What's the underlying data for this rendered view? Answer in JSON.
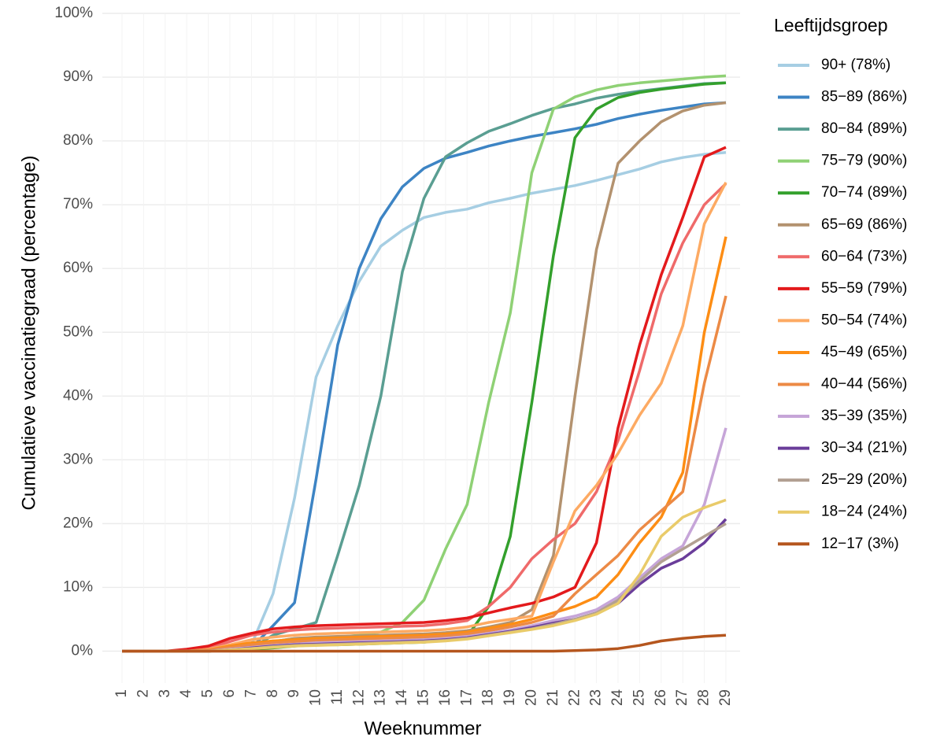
{
  "chart_data": {
    "type": "line",
    "x_label": "Weeknummer",
    "y_label": "Cumulatieve vaccinatiegraad (percentage)",
    "legend_title": "Leeftijdsgroep",
    "legend": "right",
    "grid": true,
    "categories": [
      "1",
      "2",
      "3",
      "4",
      "5",
      "6",
      "7",
      "8",
      "9",
      "10",
      "11",
      "12",
      "13",
      "14",
      "15",
      "16",
      "17",
      "18",
      "19",
      "20",
      "21",
      "22",
      "23",
      "24",
      "25",
      "26",
      "27",
      "28",
      "29"
    ],
    "ylim": [
      -5,
      100
    ],
    "yticks": [
      {
        "value": 0,
        "label": "0%"
      },
      {
        "value": 10,
        "label": "10%"
      },
      {
        "value": 20,
        "label": "20%"
      },
      {
        "value": 30,
        "label": "30%"
      },
      {
        "value": 40,
        "label": "40%"
      },
      {
        "value": 50,
        "label": "50%"
      },
      {
        "value": 60,
        "label": "60%"
      },
      {
        "value": 70,
        "label": "70%"
      },
      {
        "value": 80,
        "label": "80%"
      },
      {
        "value": 90,
        "label": "90%"
      },
      {
        "value": 100,
        "label": "100%"
      }
    ],
    "series": [
      {
        "name": "90+ (78%)",
        "color": "#a6cee3",
        "values": [
          0,
          0,
          0,
          0,
          0,
          0.5,
          1,
          9,
          24,
          43,
          51,
          58,
          63.5,
          66,
          68,
          68.8,
          69.3,
          70.3,
          71,
          71.8,
          72.4,
          73,
          73.8,
          74.7,
          75.6,
          76.7,
          77.4,
          77.9,
          78.2
        ]
      },
      {
        "name": "85−89 (86%)",
        "color": "#3d84c4",
        "values": [
          0,
          0,
          0,
          0,
          0,
          0.3,
          0.5,
          4,
          7.6,
          27,
          48,
          60,
          67.8,
          72.8,
          75.7,
          77.3,
          78.2,
          79.2,
          80,
          80.7,
          81.3,
          81.9,
          82.6,
          83.5,
          84.2,
          84.8,
          85.3,
          85.8,
          86
        ]
      },
      {
        "name": "80−84 (89%)",
        "color": "#5a9e92",
        "values": [
          0,
          0,
          0,
          0,
          0,
          0.3,
          0.5,
          2.5,
          3.5,
          4.5,
          15,
          26,
          40,
          59.5,
          71,
          77.5,
          79.7,
          81.5,
          82.7,
          84,
          85.1,
          85.8,
          86.7,
          87.3,
          87.8,
          88.2,
          88.6,
          89,
          89.1
        ]
      },
      {
        "name": "75−79 (90%)",
        "color": "#8fd175",
        "values": [
          0,
          0,
          0,
          0,
          0,
          0.3,
          0.5,
          1.5,
          2,
          2,
          2.2,
          2.5,
          3,
          4.5,
          8,
          16,
          23,
          39,
          53,
          75,
          85,
          86.9,
          88,
          88.7,
          89.1,
          89.4,
          89.7,
          90,
          90.2
        ]
      },
      {
        "name": "70−74 (89%)",
        "color": "#33a02c",
        "values": [
          0,
          0,
          0,
          0,
          0,
          0.2,
          0.3,
          0.5,
          0.8,
          1,
          1,
          1.1,
          1.2,
          1.3,
          1.4,
          1.8,
          2.3,
          7,
          18,
          39,
          62,
          80.5,
          85,
          86.8,
          87.6,
          88.1,
          88.5,
          88.9,
          89.1
        ]
      },
      {
        "name": "65−69 (86%)",
        "color": "#b3926f",
        "values": [
          0,
          0,
          0,
          0,
          0,
          0.3,
          0.5,
          1.5,
          2,
          2.2,
          2.3,
          2.4,
          2.5,
          2.6,
          2.7,
          2.9,
          3.2,
          3.8,
          4.5,
          6.5,
          15,
          40,
          63,
          76.5,
          80,
          83,
          84.7,
          85.6,
          86
        ]
      },
      {
        "name": "60−64 (73%)",
        "color": "#ef6a6a",
        "values": [
          0,
          0,
          0,
          0,
          0.5,
          1.5,
          2.5,
          3,
          3.3,
          3.5,
          3.6,
          3.7,
          3.8,
          3.9,
          4,
          4.3,
          4.8,
          7,
          10,
          14.5,
          17.5,
          20,
          25,
          33,
          44,
          56,
          64,
          70,
          73.3
        ]
      },
      {
        "name": "55−59 (79%)",
        "color": "#e31a1c",
        "values": [
          0,
          0,
          0,
          0.3,
          0.8,
          2,
          2.8,
          3.5,
          3.8,
          4,
          4.1,
          4.2,
          4.3,
          4.4,
          4.5,
          4.8,
          5.2,
          6,
          6.8,
          7.5,
          8.5,
          10,
          17,
          35,
          48,
          59,
          68,
          77.5,
          79
        ]
      },
      {
        "name": "50−54 (74%)",
        "color": "#fdaa63",
        "values": [
          0,
          0,
          0,
          0,
          0.3,
          1,
          1.8,
          2.2,
          2.5,
          2.7,
          2.8,
          2.9,
          3,
          3.1,
          3.2,
          3.4,
          3.8,
          4.5,
          5,
          5.5,
          14,
          22,
          26,
          31,
          37,
          42,
          51,
          67,
          73.5
        ]
      },
      {
        "name": "45−49 (65%)",
        "color": "#fd8d14",
        "values": [
          0,
          0,
          0,
          0,
          0.2,
          0.8,
          1.3,
          1.6,
          1.8,
          2,
          2.1,
          2.2,
          2.3,
          2.4,
          2.5,
          2.7,
          3,
          3.6,
          4.2,
          5,
          6,
          7,
          8.5,
          12,
          17,
          21,
          28,
          50,
          65
        ]
      },
      {
        "name": "40−44 (56%)",
        "color": "#ec8a45",
        "values": [
          0,
          0,
          0,
          0,
          0.2,
          0.6,
          1,
          1.3,
          1.5,
          1.7,
          1.8,
          1.9,
          2,
          2.1,
          2.2,
          2.4,
          2.7,
          3.2,
          3.8,
          4.5,
          5.5,
          9,
          12,
          15,
          19,
          22,
          25,
          42,
          55.7
        ]
      },
      {
        "name": "35−39 (35%)",
        "color": "#c6a5d8",
        "values": [
          0,
          0,
          0,
          0,
          0,
          0.3,
          0.6,
          0.9,
          1.1,
          1.3,
          1.4,
          1.5,
          1.6,
          1.7,
          1.8,
          2,
          2.3,
          2.8,
          3.3,
          4,
          4.8,
          5.5,
          6.5,
          8.5,
          11.5,
          14.5,
          16.5,
          23,
          35
        ]
      },
      {
        "name": "30−34 (21%)",
        "color": "#6a3d9a",
        "values": [
          0,
          0,
          0,
          0,
          0,
          0.2,
          0.5,
          0.8,
          1,
          1.1,
          1.2,
          1.3,
          1.4,
          1.5,
          1.6,
          1.8,
          2.1,
          2.6,
          3.1,
          3.7,
          4.4,
          5,
          6,
          7.5,
          10.5,
          13,
          14.5,
          17,
          20.7
        ]
      },
      {
        "name": "25−29 (20%)",
        "color": "#b2a092",
        "values": [
          0,
          0,
          0,
          0,
          0,
          0.2,
          0.4,
          0.7,
          0.9,
          1,
          1.1,
          1.2,
          1.3,
          1.4,
          1.5,
          1.7,
          2,
          2.5,
          3,
          3.5,
          4.2,
          5,
          6,
          8,
          11,
          14,
          16,
          18,
          20
        ]
      },
      {
        "name": "18−24 (24%)",
        "color": "#e9cb6a",
        "values": [
          0,
          0,
          0,
          0,
          0,
          0.2,
          0.4,
          0.6,
          0.8,
          0.9,
          1,
          1.1,
          1.2,
          1.3,
          1.4,
          1.6,
          1.9,
          2.4,
          2.9,
          3.4,
          4,
          4.8,
          5.8,
          7.5,
          12,
          18,
          21,
          22.5,
          23.7
        ]
      },
      {
        "name": "12−17 (3%)",
        "color": "#b5561e",
        "values": [
          0,
          0,
          0,
          0,
          0,
          0,
          0,
          0,
          0,
          0,
          0,
          0,
          0,
          0,
          0,
          0,
          0,
          0,
          0,
          0,
          0,
          0.1,
          0.2,
          0.4,
          0.9,
          1.6,
          2,
          2.3,
          2.5
        ]
      }
    ]
  }
}
